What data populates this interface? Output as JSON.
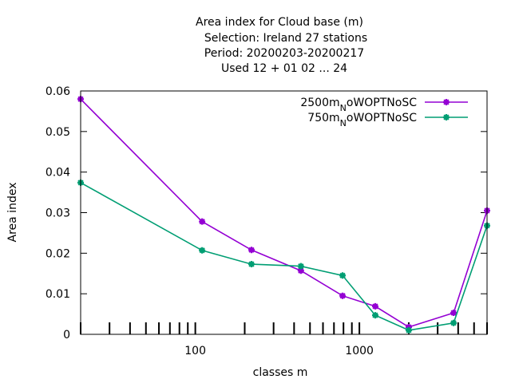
{
  "chart_data": {
    "type": "line",
    "title_lines": [
      "Area index  for Cloud base (m)",
      "Selection: Ireland     27 stations",
      "Period: 20200203-20200217",
      "Used  12 + 01 02 ... 24"
    ],
    "xlabel": "classes m",
    "ylabel": "Area index",
    "x_scale": "log",
    "xlim": [
      20,
      6000
    ],
    "ylim": [
      0,
      0.06
    ],
    "x_ticks": [
      "100",
      "1000"
    ],
    "y_ticks": [
      "0",
      "0.01",
      "0.02",
      "0.03",
      "0.04",
      "0.05",
      "0.06"
    ],
    "grid": false,
    "legend_position": "top-right",
    "series": [
      {
        "name": "2500m_NoWOPTNoSC",
        "legend_main": "2500m",
        "legend_sub": "N",
        "legend_rest": "oWOPTNoSC",
        "color": "#9400d3",
        "x": [
          20,
          110,
          220,
          440,
          790,
          1250,
          2000,
          3750,
          6000
        ],
        "y": [
          0.058,
          0.0278,
          0.0208,
          0.0157,
          0.0095,
          0.0069,
          0.0018,
          0.0053,
          0.0305
        ]
      },
      {
        "name": "750m_NoWOPTNoSC",
        "legend_main": "750m",
        "legend_sub": "N",
        "legend_rest": "oWOPTNoSC",
        "color": "#009e73",
        "x": [
          20,
          110,
          220,
          440,
          790,
          1250,
          2000,
          3750,
          6000
        ],
        "y": [
          0.0374,
          0.0207,
          0.0173,
          0.0168,
          0.0145,
          0.0047,
          0.001,
          0.0028,
          0.0268
        ]
      }
    ]
  }
}
